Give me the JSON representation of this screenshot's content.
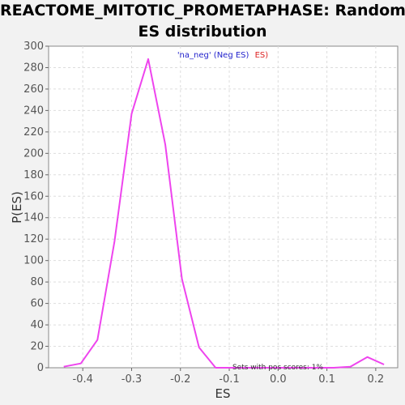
{
  "chart_data": {
    "type": "line",
    "title_line1": "REACTOME_MITOTIC_PROMETAPHASE: Random",
    "title_line2": "ES distribution",
    "xlabel": "ES",
    "ylabel": "P(ES)",
    "xlim": [
      -0.47,
      0.245
    ],
    "ylim": [
      0,
      300
    ],
    "x_ticks": [
      -0.4,
      -0.3,
      -0.2,
      -0.1,
      0.0,
      0.1,
      0.2
    ],
    "x_tick_labels": [
      "-0.4",
      "-0.3",
      "-0.2",
      "-0.1",
      "0.0",
      "0.1",
      "0.2"
    ],
    "y_ticks": [
      0,
      20,
      40,
      60,
      80,
      100,
      120,
      140,
      160,
      180,
      200,
      220,
      240,
      260,
      280,
      300
    ],
    "y_tick_labels": [
      "0",
      "20",
      "40",
      "60",
      "80",
      "100",
      "120",
      "140",
      "160",
      "180",
      "200",
      "220",
      "240",
      "260",
      "280",
      "300"
    ],
    "grid": true,
    "legend": {
      "placement": "top-center",
      "part1": "'na_neg' (Neg ES)",
      "part2": "ES)",
      "color1": "#2222cc",
      "color2": "#dd2222"
    },
    "annotation": "Sets with pos scores: 1%",
    "series": [
      {
        "color": "#ee44ee",
        "points": [
          [
            -0.439,
            1
          ],
          [
            -0.404,
            4
          ],
          [
            -0.37,
            26
          ],
          [
            -0.335,
            118
          ],
          [
            -0.3,
            237
          ],
          [
            -0.266,
            288
          ],
          [
            -0.231,
            208
          ],
          [
            -0.197,
            83
          ],
          [
            -0.162,
            19
          ],
          [
            -0.128,
            0
          ],
          [
            -0.093,
            0
          ],
          [
            -0.059,
            0
          ],
          [
            -0.024,
            0
          ],
          [
            0.01,
            0
          ],
          [
            0.045,
            0
          ],
          [
            0.079,
            0
          ],
          [
            0.114,
            0
          ],
          [
            0.148,
            1
          ],
          [
            0.183,
            10
          ],
          [
            0.217,
            3
          ]
        ]
      }
    ]
  }
}
